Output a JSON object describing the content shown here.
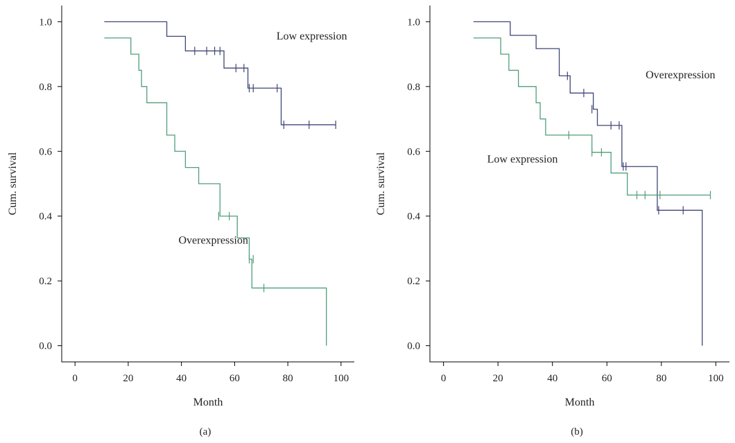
{
  "chart_data": [
    {
      "type": "line",
      "subtype": "kaplan-meier",
      "panel_label": "(a)",
      "title": "",
      "xlabel": "Month",
      "ylabel": "Cum. survival",
      "xlim": [
        -5,
        105
      ],
      "ylim": [
        -0.05,
        1.05
      ],
      "xticks": [
        0,
        20,
        40,
        60,
        80,
        100
      ],
      "yticks": [
        "0.0",
        "0.2",
        "0.4",
        "0.6",
        "0.8",
        "1.0"
      ],
      "grid": false,
      "series": [
        {
          "annotation": "Low expression",
          "color": "#3f4577",
          "steps": [
            [
              11,
              1.0
            ],
            [
              34.5,
              0.955
            ],
            [
              41.5,
              0.91
            ],
            [
              56,
              0.857
            ],
            [
              65,
              0.795
            ],
            [
              77.5,
              0.682
            ],
            [
              98,
              0.682
            ]
          ],
          "censors": [
            [
              45,
              0.91
            ],
            [
              49.5,
              0.91
            ],
            [
              52.5,
              0.91
            ],
            [
              54.5,
              0.91
            ],
            [
              60.5,
              0.857
            ],
            [
              63.5,
              0.857
            ],
            [
              78.5,
              0.682
            ],
            [
              88,
              0.682
            ],
            [
              98,
              0.682
            ],
            [
              65.5,
              0.795
            ],
            [
              67,
              0.795
            ],
            [
              76,
              0.795
            ]
          ],
          "annotation_pos": [
            89,
            0.945
          ]
        },
        {
          "annotation": "Overexpression",
          "color": "#4f9e7a",
          "steps": [
            [
              11,
              0.95
            ],
            [
              21,
              0.9
            ],
            [
              24,
              0.85
            ],
            [
              25,
              0.8
            ],
            [
              27,
              0.75
            ],
            [
              34.5,
              0.65
            ],
            [
              37.5,
              0.6
            ],
            [
              41.5,
              0.55
            ],
            [
              46.5,
              0.5
            ],
            [
              54.5,
              0.4
            ],
            [
              61,
              0.333
            ],
            [
              65.5,
              0.267
            ],
            [
              66.5,
              0.178
            ],
            [
              94.5,
              0.0
            ]
          ],
          "censors": [
            [
              54,
              0.4
            ],
            [
              58,
              0.4
            ],
            [
              65.5,
              0.267
            ],
            [
              67,
              0.267
            ],
            [
              71,
              0.178
            ]
          ],
          "annotation_pos": [
            52,
            0.315
          ]
        }
      ]
    },
    {
      "type": "line",
      "subtype": "kaplan-meier",
      "panel_label": "(b)",
      "title": "",
      "xlabel": "Month",
      "ylabel": "Cum. survival",
      "xlim": [
        -5,
        105
      ],
      "ylim": [
        -0.05,
        1.05
      ],
      "xticks": [
        0,
        20,
        40,
        60,
        80,
        100
      ],
      "yticks": [
        "0.0",
        "0.2",
        "0.4",
        "0.6",
        "0.8",
        "1.0"
      ],
      "grid": false,
      "series": [
        {
          "annotation": "Overexpression",
          "color": "#3f4577",
          "steps": [
            [
              11,
              1.0
            ],
            [
              24.5,
              0.958
            ],
            [
              34,
              0.917
            ],
            [
              42.5,
              0.833
            ],
            [
              46.5,
              0.78
            ],
            [
              55,
              0.73
            ],
            [
              56.5,
              0.68
            ],
            [
              65.5,
              0.553
            ],
            [
              78.5,
              0.418
            ],
            [
              95,
              0.0
            ]
          ],
          "censors": [
            [
              45.5,
              0.833
            ],
            [
              51.5,
              0.78
            ],
            [
              54.5,
              0.73
            ],
            [
              61.5,
              0.68
            ],
            [
              64.5,
              0.68
            ],
            [
              66,
              0.553
            ],
            [
              67,
              0.553
            ],
            [
              79,
              0.418
            ],
            [
              88,
              0.418
            ]
          ],
          "annotation_pos": [
            87,
            0.825
          ]
        },
        {
          "annotation": "Low expression",
          "color": "#4f9e7a",
          "steps": [
            [
              11,
              0.95
            ],
            [
              21,
              0.9
            ],
            [
              24,
              0.85
            ],
            [
              27.5,
              0.8
            ],
            [
              34,
              0.75
            ],
            [
              35.5,
              0.7
            ],
            [
              37.5,
              0.65
            ],
            [
              54.5,
              0.597
            ],
            [
              61.5,
              0.533
            ],
            [
              67.5,
              0.465
            ],
            [
              98,
              0.465
            ]
          ],
          "censors": [
            [
              46,
              0.65
            ],
            [
              54.5,
              0.597
            ],
            [
              58,
              0.597
            ],
            [
              71,
              0.465
            ],
            [
              74,
              0.465
            ],
            [
              79.5,
              0.465
            ],
            [
              98,
              0.465
            ]
          ],
          "annotation_pos": [
            29,
            0.565
          ]
        }
      ]
    }
  ]
}
